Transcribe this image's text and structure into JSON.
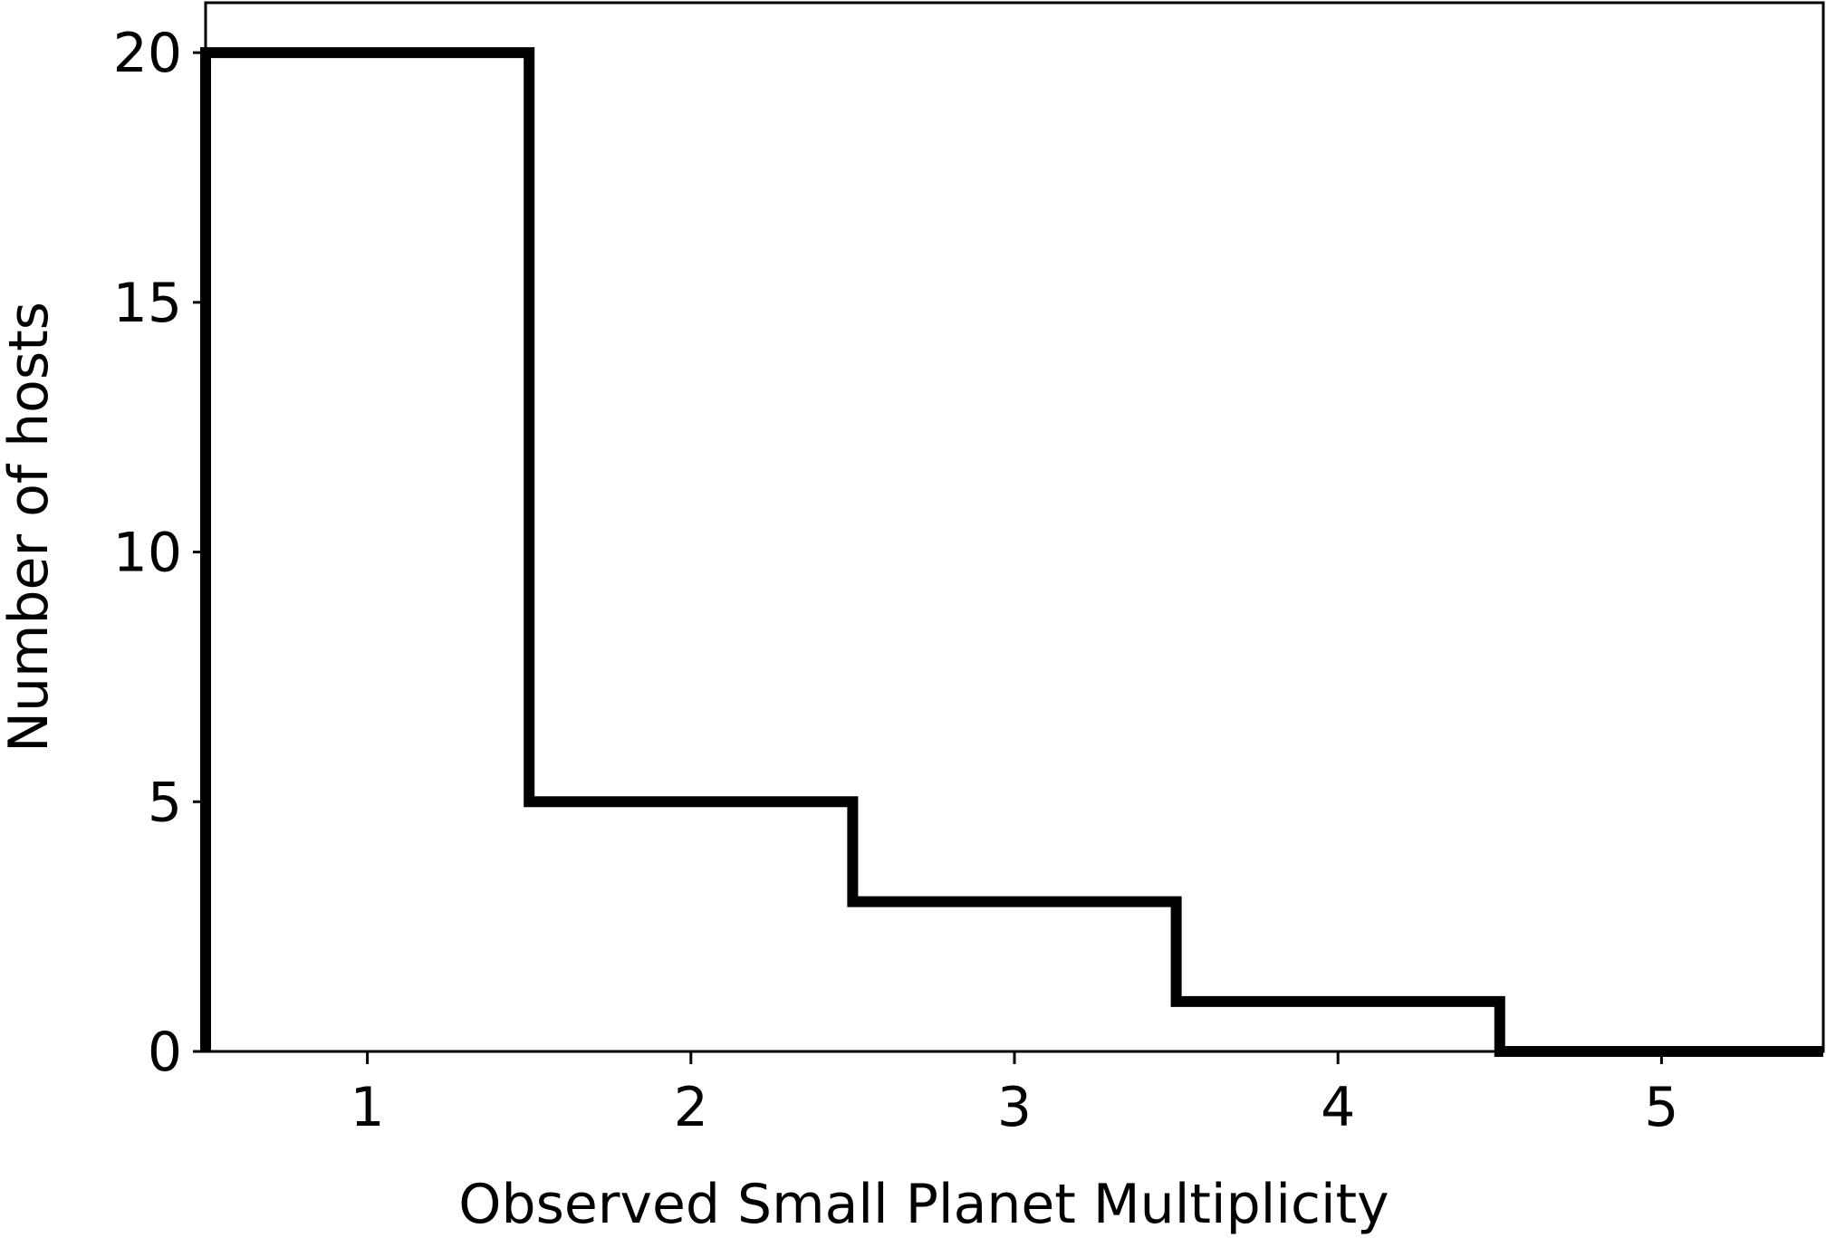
{
  "chart_data": {
    "type": "histogram-step",
    "xlabel": "Observed Small Planet Multiplicity",
    "ylabel": "Number of hosts",
    "categories": [
      1,
      2,
      3,
      4,
      5
    ],
    "values": [
      20,
      5,
      3,
      1,
      0
    ],
    "bin_edges": [
      0.5,
      1.5,
      2.5,
      3.5,
      4.5,
      5.5
    ],
    "xlim": [
      0.5,
      5.5
    ],
    "ylim": [
      0,
      21
    ],
    "xticks": [
      1,
      2,
      3,
      4,
      5
    ],
    "xtick_labels": [
      "1",
      "2",
      "3",
      "4",
      "5"
    ],
    "yticks": [
      0,
      5,
      10,
      15,
      20
    ],
    "ytick_labels": [
      "0",
      "5",
      "10",
      "15",
      "20"
    ],
    "grid": false,
    "line_color": "#000000"
  }
}
